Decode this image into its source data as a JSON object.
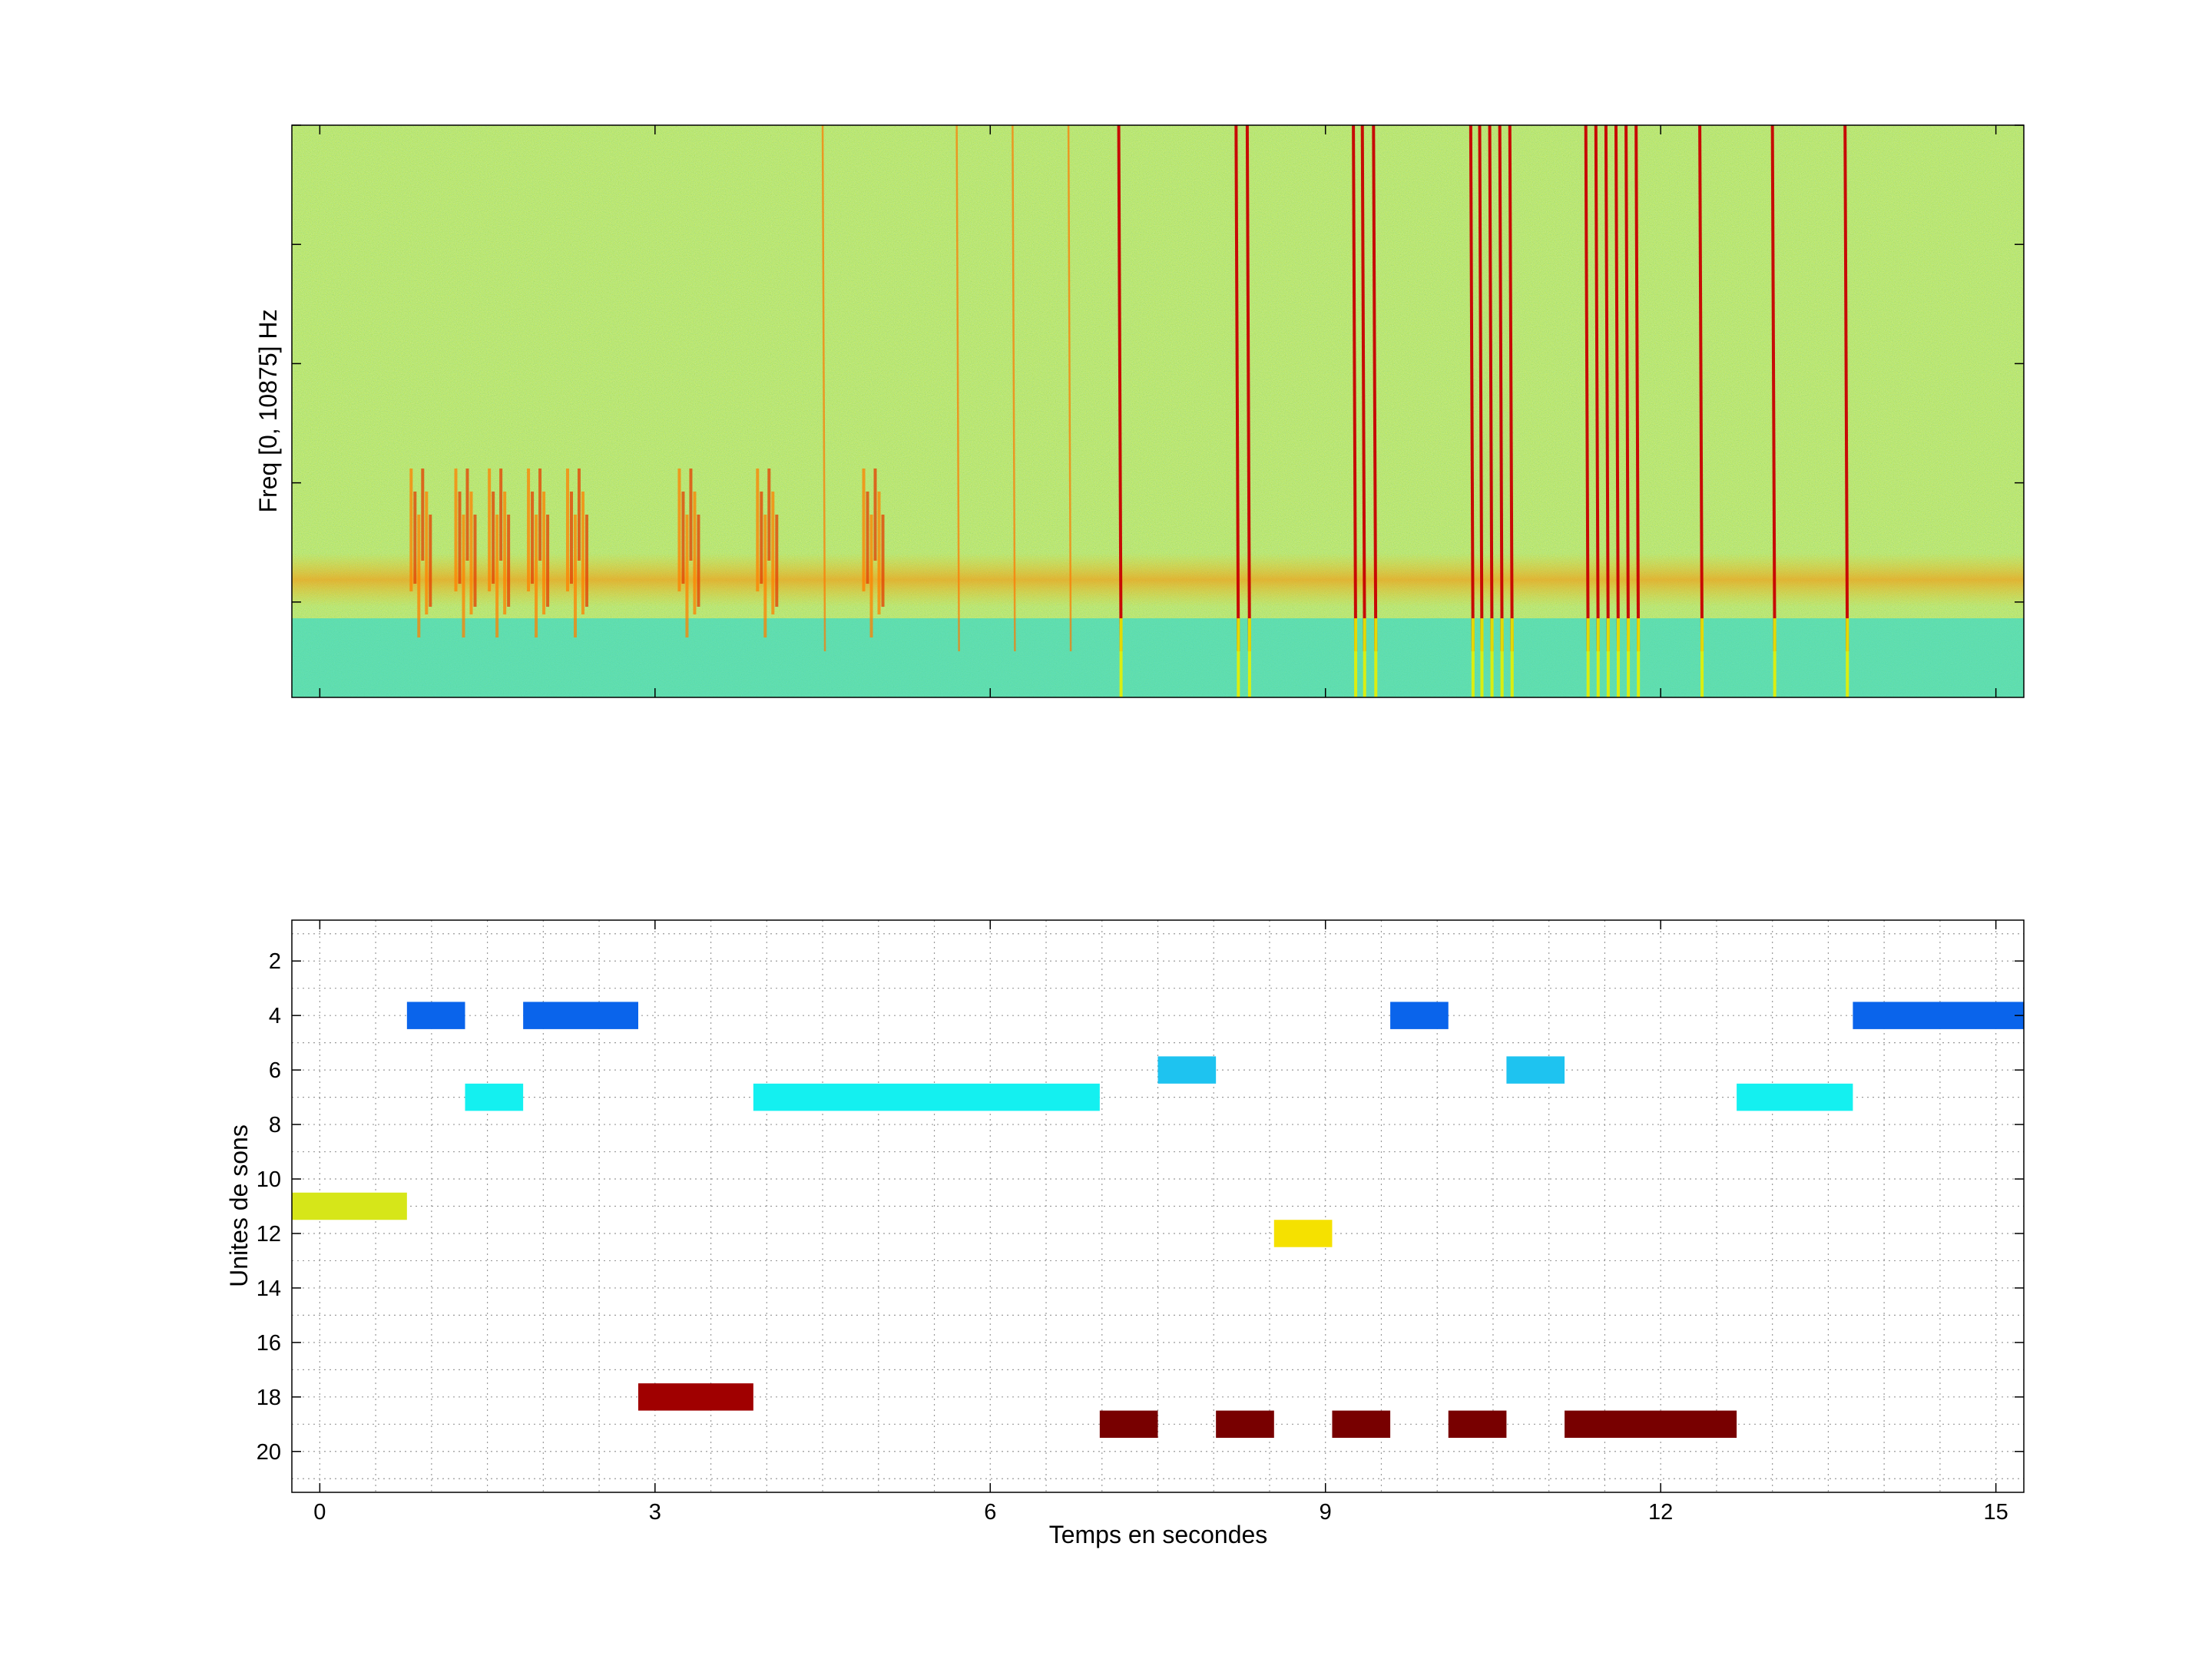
{
  "chart_data": [
    {
      "type": "heatmap",
      "ylabel": "Freq [0, 10875] Hz",
      "xlabel": "",
      "xlim": [
        -0.25,
        15.25
      ],
      "colormap": "jet",
      "grid": false,
      "features": {
        "noise_band_upper_fraction": 0.14,
        "background": "yellow-green noise",
        "vertical_clicks_seconds": [
          7.15,
          8.2,
          8.3,
          9.25,
          9.33,
          9.43,
          10.3,
          10.38,
          10.47,
          10.56,
          10.65,
          11.33,
          11.42,
          11.51,
          11.6,
          11.69,
          11.78,
          12.35,
          13.0,
          13.65,
          6.7,
          6.2,
          5.7,
          4.5
        ],
        "call_segments_seconds": [
          0.9,
          1.3,
          1.6,
          1.95,
          2.3,
          3.3,
          4.0,
          4.95
        ]
      }
    },
    {
      "type": "bar",
      "subtype": "horizontal-segments",
      "xlabel": "Temps en secondes",
      "ylabel": "Unites de sons",
      "xlim": [
        -0.25,
        15.25
      ],
      "ylim": [
        21.5,
        0.5
      ],
      "xticks": [
        0,
        3,
        6,
        9,
        12,
        15
      ],
      "yticks": [
        2,
        4,
        6,
        8,
        10,
        12,
        14,
        16,
        18,
        20
      ],
      "grid": true,
      "segments": [
        {
          "unit": 11,
          "start": -0.25,
          "end": 0.78,
          "color": "#d6e619"
        },
        {
          "unit": 4,
          "start": 0.78,
          "end": 1.3,
          "color": "#0a64eb"
        },
        {
          "unit": 7,
          "start": 1.3,
          "end": 1.82,
          "color": "#14f0f0"
        },
        {
          "unit": 4,
          "start": 1.82,
          "end": 2.85,
          "color": "#0a64eb"
        },
        {
          "unit": 18,
          "start": 2.85,
          "end": 3.88,
          "color": "#a00000"
        },
        {
          "unit": 7,
          "start": 3.88,
          "end": 6.98,
          "color": "#14f0f0"
        },
        {
          "unit": 19,
          "start": 6.98,
          "end": 7.5,
          "color": "#780000"
        },
        {
          "unit": 6,
          "start": 7.5,
          "end": 8.02,
          "color": "#1ec3f0"
        },
        {
          "unit": 19,
          "start": 8.02,
          "end": 8.54,
          "color": "#780000"
        },
        {
          "unit": 12,
          "start": 8.54,
          "end": 9.06,
          "color": "#f5e100"
        },
        {
          "unit": 19,
          "start": 9.06,
          "end": 9.58,
          "color": "#780000"
        },
        {
          "unit": 4,
          "start": 9.58,
          "end": 10.1,
          "color": "#0a64eb"
        },
        {
          "unit": 19,
          "start": 10.1,
          "end": 10.62,
          "color": "#780000"
        },
        {
          "unit": 6,
          "start": 10.62,
          "end": 11.14,
          "color": "#1ec3f0"
        },
        {
          "unit": 19,
          "start": 11.14,
          "end": 12.68,
          "color": "#780000"
        },
        {
          "unit": 7,
          "start": 12.68,
          "end": 13.72,
          "color": "#14f0f0"
        },
        {
          "unit": 4,
          "start": 13.72,
          "end": 15.25,
          "color": "#0a64eb"
        }
      ]
    }
  ]
}
